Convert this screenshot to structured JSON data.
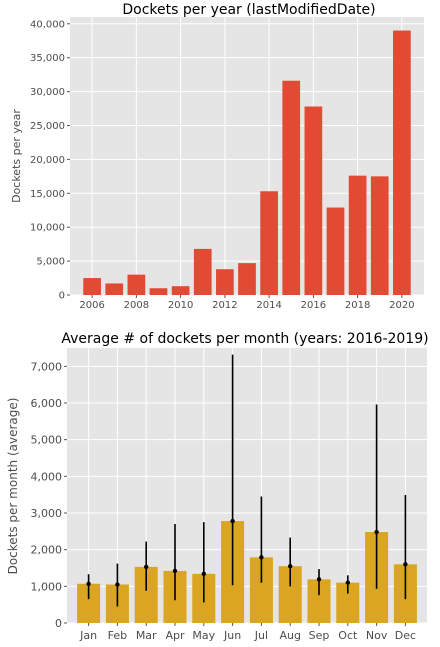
{
  "chart_data": [
    {
      "type": "bar",
      "title": "Dockets per year (lastModifiedDate)",
      "xlabel": "",
      "ylabel": "Dockets per year",
      "categories": [
        2006,
        2007,
        2008,
        2009,
        2010,
        2011,
        2012,
        2013,
        2014,
        2015,
        2016,
        2017,
        2018,
        2019,
        2020
      ],
      "values": [
        2500,
        1700,
        3000,
        1000,
        1300,
        6800,
        3800,
        4700,
        15300,
        31600,
        27800,
        12900,
        17600,
        17500,
        39000
      ],
      "xticks": [
        "2006",
        "2008",
        "2010",
        "2012",
        "2014",
        "2016",
        "2018",
        "2020"
      ],
      "yticks": [
        "0",
        "5,000",
        "10,000",
        "15,000",
        "20,000",
        "25,000",
        "30,000",
        "35,000",
        "40,000"
      ],
      "ylim": [
        0,
        41000
      ],
      "color": "#e24a33",
      "grid": true
    },
    {
      "type": "bar",
      "title": "Average # of dockets per month (years: 2016-2019)",
      "xlabel": "",
      "ylabel": "Dockets per month (average)",
      "categories": [
        "Jan",
        "Feb",
        "Mar",
        "Apr",
        "May",
        "Jun",
        "Jul",
        "Aug",
        "Sep",
        "Oct",
        "Nov",
        "Dec"
      ],
      "values": [
        1070,
        1050,
        1530,
        1420,
        1340,
        2780,
        1790,
        1550,
        1190,
        1100,
        2480,
        1600
      ],
      "error_low": [
        650,
        450,
        880,
        620,
        560,
        1030,
        1100,
        1000,
        760,
        800,
        930,
        650
      ],
      "error_high": [
        1330,
        1620,
        2220,
        2700,
        2750,
        7320,
        3450,
        2330,
        1470,
        1300,
        5960,
        3490
      ],
      "yticks": [
        "0",
        "1,000",
        "2,000",
        "3,000",
        "4,000",
        "5,000",
        "6,000",
        "7,000"
      ],
      "ylim": [
        0,
        7500
      ],
      "color": "#daa520",
      "grid": true
    }
  ]
}
